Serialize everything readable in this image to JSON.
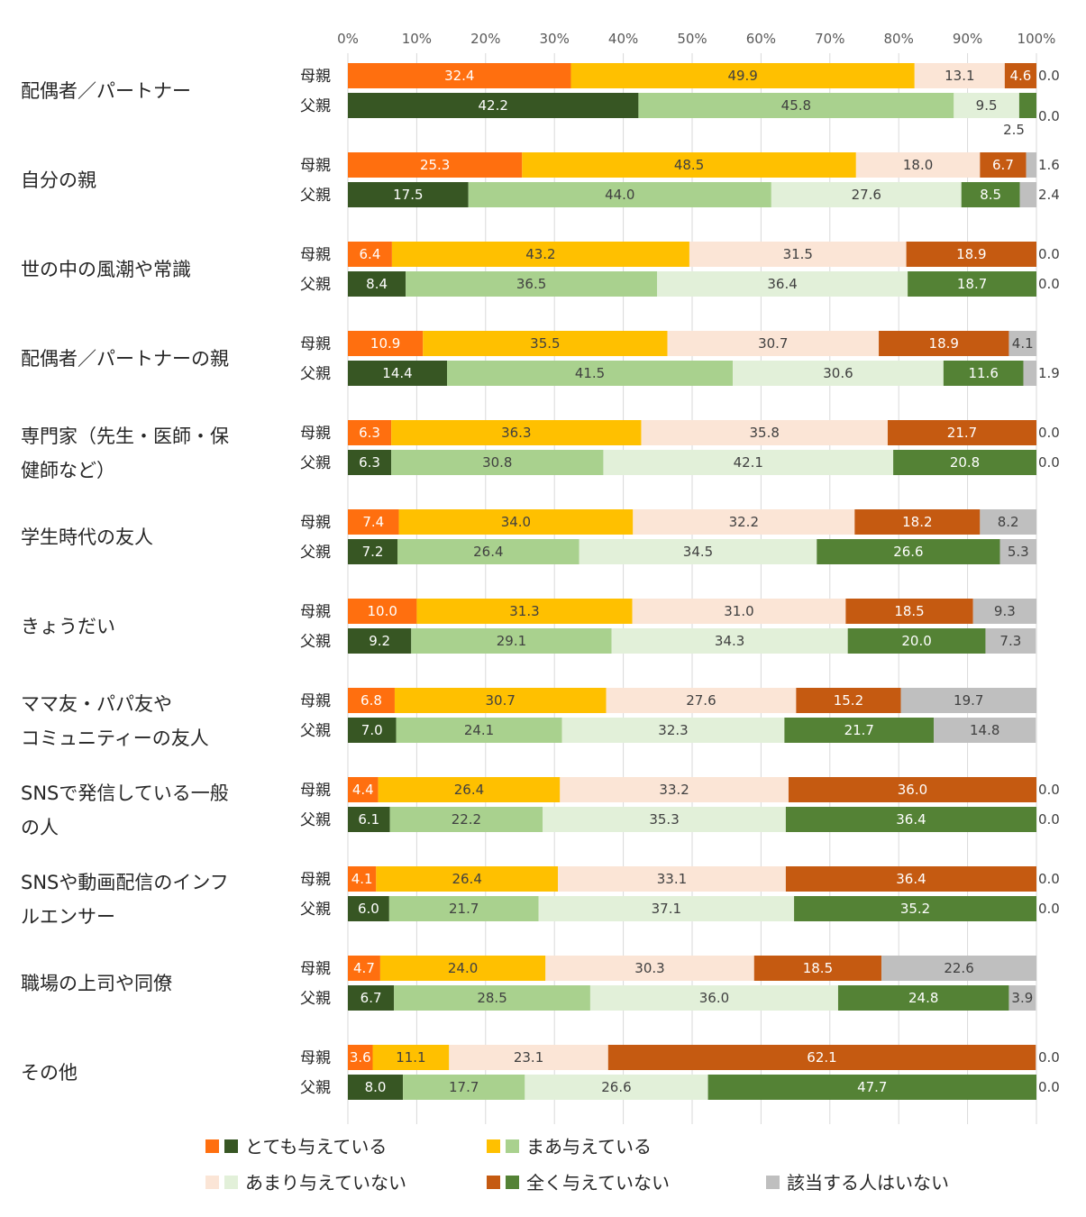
{
  "chart_data": {
    "type": "bar",
    "orientation": "horizontal",
    "stacked": true,
    "percent": true,
    "title": "",
    "xlim": [
      0,
      100
    ],
    "x_ticks": [
      "0%",
      "10%",
      "20%",
      "30%",
      "40%",
      "50%",
      "60%",
      "70%",
      "80%",
      "90%",
      "100%"
    ],
    "grid": true,
    "legend_position": "bottom",
    "rows": [
      "母親",
      "父親"
    ],
    "segments": [
      {
        "name": "とても与えている",
        "mother_color": "#ff6f0f",
        "father_color": "#375623"
      },
      {
        "name": "まあ与えている",
        "mother_color": "#ffc000",
        "father_color": "#a9d18e"
      },
      {
        "name": "あまり与えていない",
        "mother_color": "#fbe5d6",
        "father_color": "#e2f0d9"
      },
      {
        "name": "全く与えていない",
        "mother_color": "#c55a11",
        "father_color": "#548235"
      },
      {
        "name": "該当する人はいない",
        "mother_color": "#bfbfbf",
        "father_color": "#bfbfbf"
      }
    ],
    "categories": [
      {
        "label": [
          "配偶者／パートナー"
        ],
        "mother": [
          32.4,
          49.9,
          13.1,
          4.6,
          0.0
        ],
        "father": [
          42.2,
          45.8,
          9.5,
          2.5,
          0.0
        ]
      },
      {
        "label": [
          "自分の親"
        ],
        "mother": [
          25.3,
          48.5,
          18.0,
          6.7,
          1.6
        ],
        "father": [
          17.5,
          44.0,
          27.6,
          8.5,
          2.4
        ]
      },
      {
        "label": [
          "世の中の風潮や常識"
        ],
        "mother": [
          6.4,
          43.2,
          31.5,
          18.9,
          0.0
        ],
        "father": [
          8.4,
          36.5,
          36.4,
          18.7,
          0.0
        ]
      },
      {
        "label": [
          "配偶者／パートナーの親"
        ],
        "mother": [
          10.9,
          35.5,
          30.7,
          18.9,
          4.1
        ],
        "father": [
          14.4,
          41.5,
          30.6,
          11.6,
          1.9
        ]
      },
      {
        "label": [
          "専門家（先生・医師・保",
          "健師など）"
        ],
        "mother": [
          6.3,
          36.3,
          35.8,
          21.7,
          0.0
        ],
        "father": [
          6.3,
          30.8,
          42.1,
          20.8,
          0.0
        ]
      },
      {
        "label": [
          "学生時代の友人"
        ],
        "mother": [
          7.4,
          34.0,
          32.2,
          18.2,
          8.2
        ],
        "father": [
          7.2,
          26.4,
          34.5,
          26.6,
          5.3
        ]
      },
      {
        "label": [
          "きょうだい"
        ],
        "mother": [
          10.0,
          31.3,
          31.0,
          18.5,
          9.3
        ],
        "father": [
          9.2,
          29.1,
          34.3,
          20.0,
          7.3
        ]
      },
      {
        "label": [
          "ママ友・パパ友や",
          "コミュニティーの友人"
        ],
        "mother": [
          6.8,
          30.7,
          27.6,
          15.2,
          19.7
        ],
        "father": [
          7.0,
          24.1,
          32.3,
          21.7,
          14.8
        ]
      },
      {
        "label": [
          "SNSで発信している一般",
          "の人"
        ],
        "mother": [
          4.4,
          26.4,
          33.2,
          36.0,
          0.0
        ],
        "father": [
          6.1,
          22.2,
          35.3,
          36.4,
          0.0
        ]
      },
      {
        "label": [
          "SNSや動画配信のインフ",
          "ルエンサー"
        ],
        "mother": [
          4.1,
          26.4,
          33.1,
          36.4,
          0.0
        ],
        "father": [
          6.0,
          21.7,
          37.1,
          35.2,
          0.0
        ]
      },
      {
        "label": [
          "職場の上司や同僚"
        ],
        "mother": [
          4.7,
          24.0,
          30.3,
          18.5,
          22.6
        ],
        "father": [
          6.7,
          28.5,
          36.0,
          24.8,
          3.9
        ]
      },
      {
        "label": [
          "その他"
        ],
        "mother": [
          3.6,
          11.1,
          23.1,
          62.1,
          0.0
        ],
        "father": [
          8.0,
          17.7,
          26.6,
          47.7,
          0.0
        ]
      }
    ]
  }
}
